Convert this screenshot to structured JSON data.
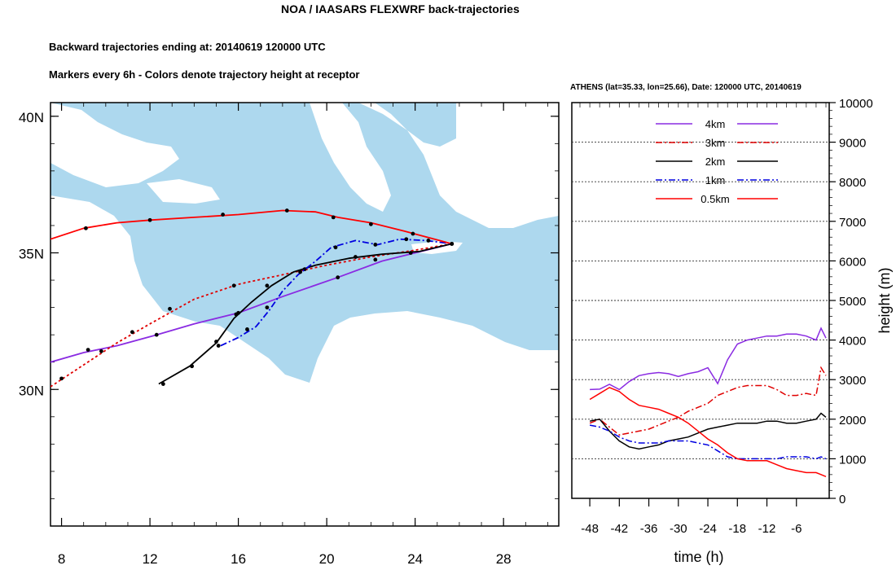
{
  "header": {
    "title": "NOA / IAASARS FLEXWRF back-trajectories",
    "line1": "Backward trajectories ending at: 20140619  120000 UTC",
    "line2": "Markers every 6h - Colors denote trajectory height at receptor"
  },
  "colors": {
    "sea": "#add8ee",
    "land": "#ffffff",
    "traj_4km": "#8a2be2",
    "traj_3km": "#e00000",
    "traj_2km": "#000000",
    "traj_1km": "#0000e0",
    "traj_0_5km": "#ff0000"
  },
  "chart_data": [
    {
      "type": "map-trajectories",
      "title": "Backward trajectories ending at: 20140619  120000 UTC",
      "xticks": [
        {
          "value": 8,
          "label": "8"
        },
        {
          "value": 12,
          "label": "12"
        },
        {
          "value": 16,
          "label": "16"
        },
        {
          "value": 20,
          "label": "20"
        },
        {
          "value": 24,
          "label": "24"
        },
        {
          "value": 28,
          "label": "28"
        }
      ],
      "yticks": [
        {
          "value": 40,
          "label": "40N"
        },
        {
          "value": 35,
          "label": "35N"
        },
        {
          "value": 30,
          "label": "30N"
        }
      ],
      "xlim": [
        7.5,
        30.5
      ],
      "ylim": [
        25,
        40.5
      ],
      "receptor": {
        "name": "ATHENS",
        "lat": 35.33,
        "lon": 25.66
      },
      "series": [
        {
          "name": "4km",
          "color": "#8a2be2",
          "dash": "solid",
          "points": [
            [
              7.5,
              31.0
            ],
            [
              9.0,
              31.35
            ],
            [
              10.5,
              31.6
            ],
            [
              12.3,
              32.0
            ],
            [
              14.0,
              32.4
            ],
            [
              16.0,
              32.8
            ],
            [
              18.0,
              33.4
            ],
            [
              20.5,
              34.1
            ],
            [
              22.5,
              34.7
            ],
            [
              24.5,
              35.1
            ],
            [
              25.66,
              35.33
            ]
          ],
          "markers": [
            [
              9.2,
              31.45
            ],
            [
              12.3,
              32.0
            ],
            [
              16.0,
              32.8
            ],
            [
              20.5,
              34.1
            ]
          ]
        },
        {
          "name": "3km",
          "color": "#e00000",
          "dash": "dot",
          "points": [
            [
              7.5,
              30.1
            ],
            [
              9.0,
              30.9
            ],
            [
              10.5,
              31.7
            ],
            [
              12.0,
              32.4
            ],
            [
              14.0,
              33.3
            ],
            [
              16.0,
              33.85
            ],
            [
              18.0,
              34.2
            ],
            [
              20.0,
              34.55
            ],
            [
              22.0,
              34.85
            ],
            [
              24.0,
              35.1
            ],
            [
              25.66,
              35.33
            ]
          ],
          "markers": [
            [
              8.0,
              30.4
            ],
            [
              9.8,
              31.4
            ],
            [
              11.2,
              32.1
            ],
            [
              12.9,
              32.95
            ],
            [
              15.8,
              33.8
            ],
            [
              22.2,
              34.75
            ]
          ]
        },
        {
          "name": "2km",
          "color": "#000000",
          "dash": "solid",
          "points": [
            [
              12.4,
              30.2
            ],
            [
              13.8,
              30.85
            ],
            [
              15.0,
              31.7
            ],
            [
              15.8,
              32.6
            ],
            [
              16.6,
              33.2
            ],
            [
              17.5,
              33.8
            ],
            [
              18.5,
              34.3
            ],
            [
              19.5,
              34.55
            ],
            [
              21.0,
              34.8
            ],
            [
              22.5,
              34.95
            ],
            [
              24.2,
              35.05
            ],
            [
              25.66,
              35.33
            ]
          ],
          "markers": [
            [
              12.6,
              30.2
            ],
            [
              13.9,
              30.85
            ],
            [
              15.0,
              31.75
            ],
            [
              15.9,
              32.75
            ],
            [
              17.3,
              33.8
            ],
            [
              19.0,
              34.4
            ],
            [
              21.3,
              34.85
            ],
            [
              23.8,
              35.0
            ]
          ]
        },
        {
          "name": "1km",
          "color": "#0000e0",
          "dash": "dashdot",
          "points": [
            [
              15.2,
              31.6
            ],
            [
              16.0,
              31.9
            ],
            [
              16.8,
              32.3
            ],
            [
              17.4,
              32.9
            ],
            [
              18.0,
              33.6
            ],
            [
              18.7,
              34.2
            ],
            [
              19.5,
              34.7
            ],
            [
              20.2,
              35.2
            ],
            [
              21.3,
              35.45
            ],
            [
              22.3,
              35.3
            ],
            [
              23.3,
              35.5
            ],
            [
              24.5,
              35.45
            ],
            [
              25.66,
              35.33
            ]
          ],
          "markers": [
            [
              15.1,
              31.6
            ],
            [
              16.4,
              32.2
            ],
            [
              17.3,
              33.0
            ],
            [
              18.8,
              34.3
            ],
            [
              20.4,
              35.2
            ],
            [
              22.2,
              35.3
            ],
            [
              23.6,
              35.5
            ],
            [
              24.6,
              35.45
            ]
          ]
        },
        {
          "name": "0.5km",
          "color": "#ff0000",
          "dash": "solid",
          "points": [
            [
              7.5,
              35.5
            ],
            [
              9.0,
              35.9
            ],
            [
              10.5,
              36.1
            ],
            [
              12.0,
              36.2
            ],
            [
              14.0,
              36.3
            ],
            [
              16.0,
              36.4
            ],
            [
              18.0,
              36.55
            ],
            [
              19.5,
              36.5
            ],
            [
              20.5,
              36.3
            ],
            [
              22.0,
              36.1
            ],
            [
              23.5,
              35.8
            ],
            [
              25.66,
              35.33
            ]
          ],
          "markers": [
            [
              9.1,
              35.9
            ],
            [
              12.0,
              36.2
            ],
            [
              15.3,
              36.4
            ],
            [
              18.2,
              36.55
            ],
            [
              20.3,
              36.3
            ],
            [
              22.0,
              36.05
            ],
            [
              23.9,
              35.7
            ]
          ]
        }
      ]
    },
    {
      "type": "line",
      "title": "ATHENS (lat=35.33,  lon=25.66), Date: 120000 UTC, 20140619",
      "xlabel": "time (h)",
      "ylabel": "height (m)",
      "xlim": [
        -50,
        0
      ],
      "ylim": [
        0,
        10000
      ],
      "xticks": [
        -48,
        -42,
        -36,
        -30,
        -24,
        -18,
        -12,
        -6
      ],
      "yticks": [
        0,
        1000,
        2000,
        3000,
        4000,
        5000,
        6000,
        7000,
        8000,
        9000,
        10000
      ],
      "gridlines_y": [
        1000,
        2000,
        3000,
        4000,
        5000,
        6000,
        7000,
        8000,
        9000
      ],
      "legend_position": "top",
      "x": [
        -48,
        -46,
        -44,
        -42,
        -40,
        -38,
        -36,
        -34,
        -32,
        -30,
        -28,
        -26,
        -24,
        -22,
        -20,
        -18,
        -16,
        -14,
        -12,
        -10,
        -8,
        -6,
        -4,
        -2,
        -1,
        0
      ],
      "series": [
        {
          "name": "4km",
          "color": "#8a2be2",
          "dash": "solid",
          "values": [
            2750,
            2760,
            2880,
            2750,
            2950,
            3100,
            3150,
            3180,
            3150,
            3080,
            3150,
            3200,
            3300,
            2900,
            3500,
            3900,
            4000,
            4050,
            4100,
            4100,
            4150,
            4150,
            4100,
            4000,
            4300,
            4050
          ]
        },
        {
          "name": "3km",
          "color": "#e00000",
          "dash": "dashdot",
          "values": [
            1900,
            2000,
            1800,
            1600,
            1650,
            1700,
            1750,
            1850,
            1950,
            2050,
            2200,
            2300,
            2400,
            2600,
            2700,
            2800,
            2850,
            2850,
            2850,
            2750,
            2600,
            2600,
            2650,
            2600,
            3300,
            3100
          ]
        },
        {
          "name": "2km",
          "color": "#000000",
          "dash": "solid",
          "values": [
            1950,
            2000,
            1700,
            1450,
            1300,
            1250,
            1300,
            1350,
            1450,
            1500,
            1550,
            1650,
            1750,
            1800,
            1850,
            1900,
            1900,
            1900,
            1950,
            1950,
            1900,
            1900,
            1950,
            2000,
            2150,
            2050
          ]
        },
        {
          "name": "1km",
          "color": "#0000e0",
          "dash": "dashdot",
          "values": [
            1850,
            1800,
            1700,
            1550,
            1450,
            1400,
            1400,
            1400,
            1450,
            1450,
            1450,
            1400,
            1350,
            1200,
            1050,
            1000,
            1000,
            1000,
            1000,
            1000,
            1050,
            1050,
            1050,
            1000,
            1050,
            1000
          ]
        },
        {
          "name": "0.5km",
          "color": "#ff0000",
          "dash": "solid",
          "values": [
            2500,
            2650,
            2800,
            2700,
            2500,
            2350,
            2300,
            2250,
            2150,
            2050,
            1900,
            1700,
            1500,
            1350,
            1150,
            1000,
            950,
            950,
            950,
            850,
            750,
            700,
            650,
            650,
            600,
            550
          ]
        }
      ]
    }
  ]
}
